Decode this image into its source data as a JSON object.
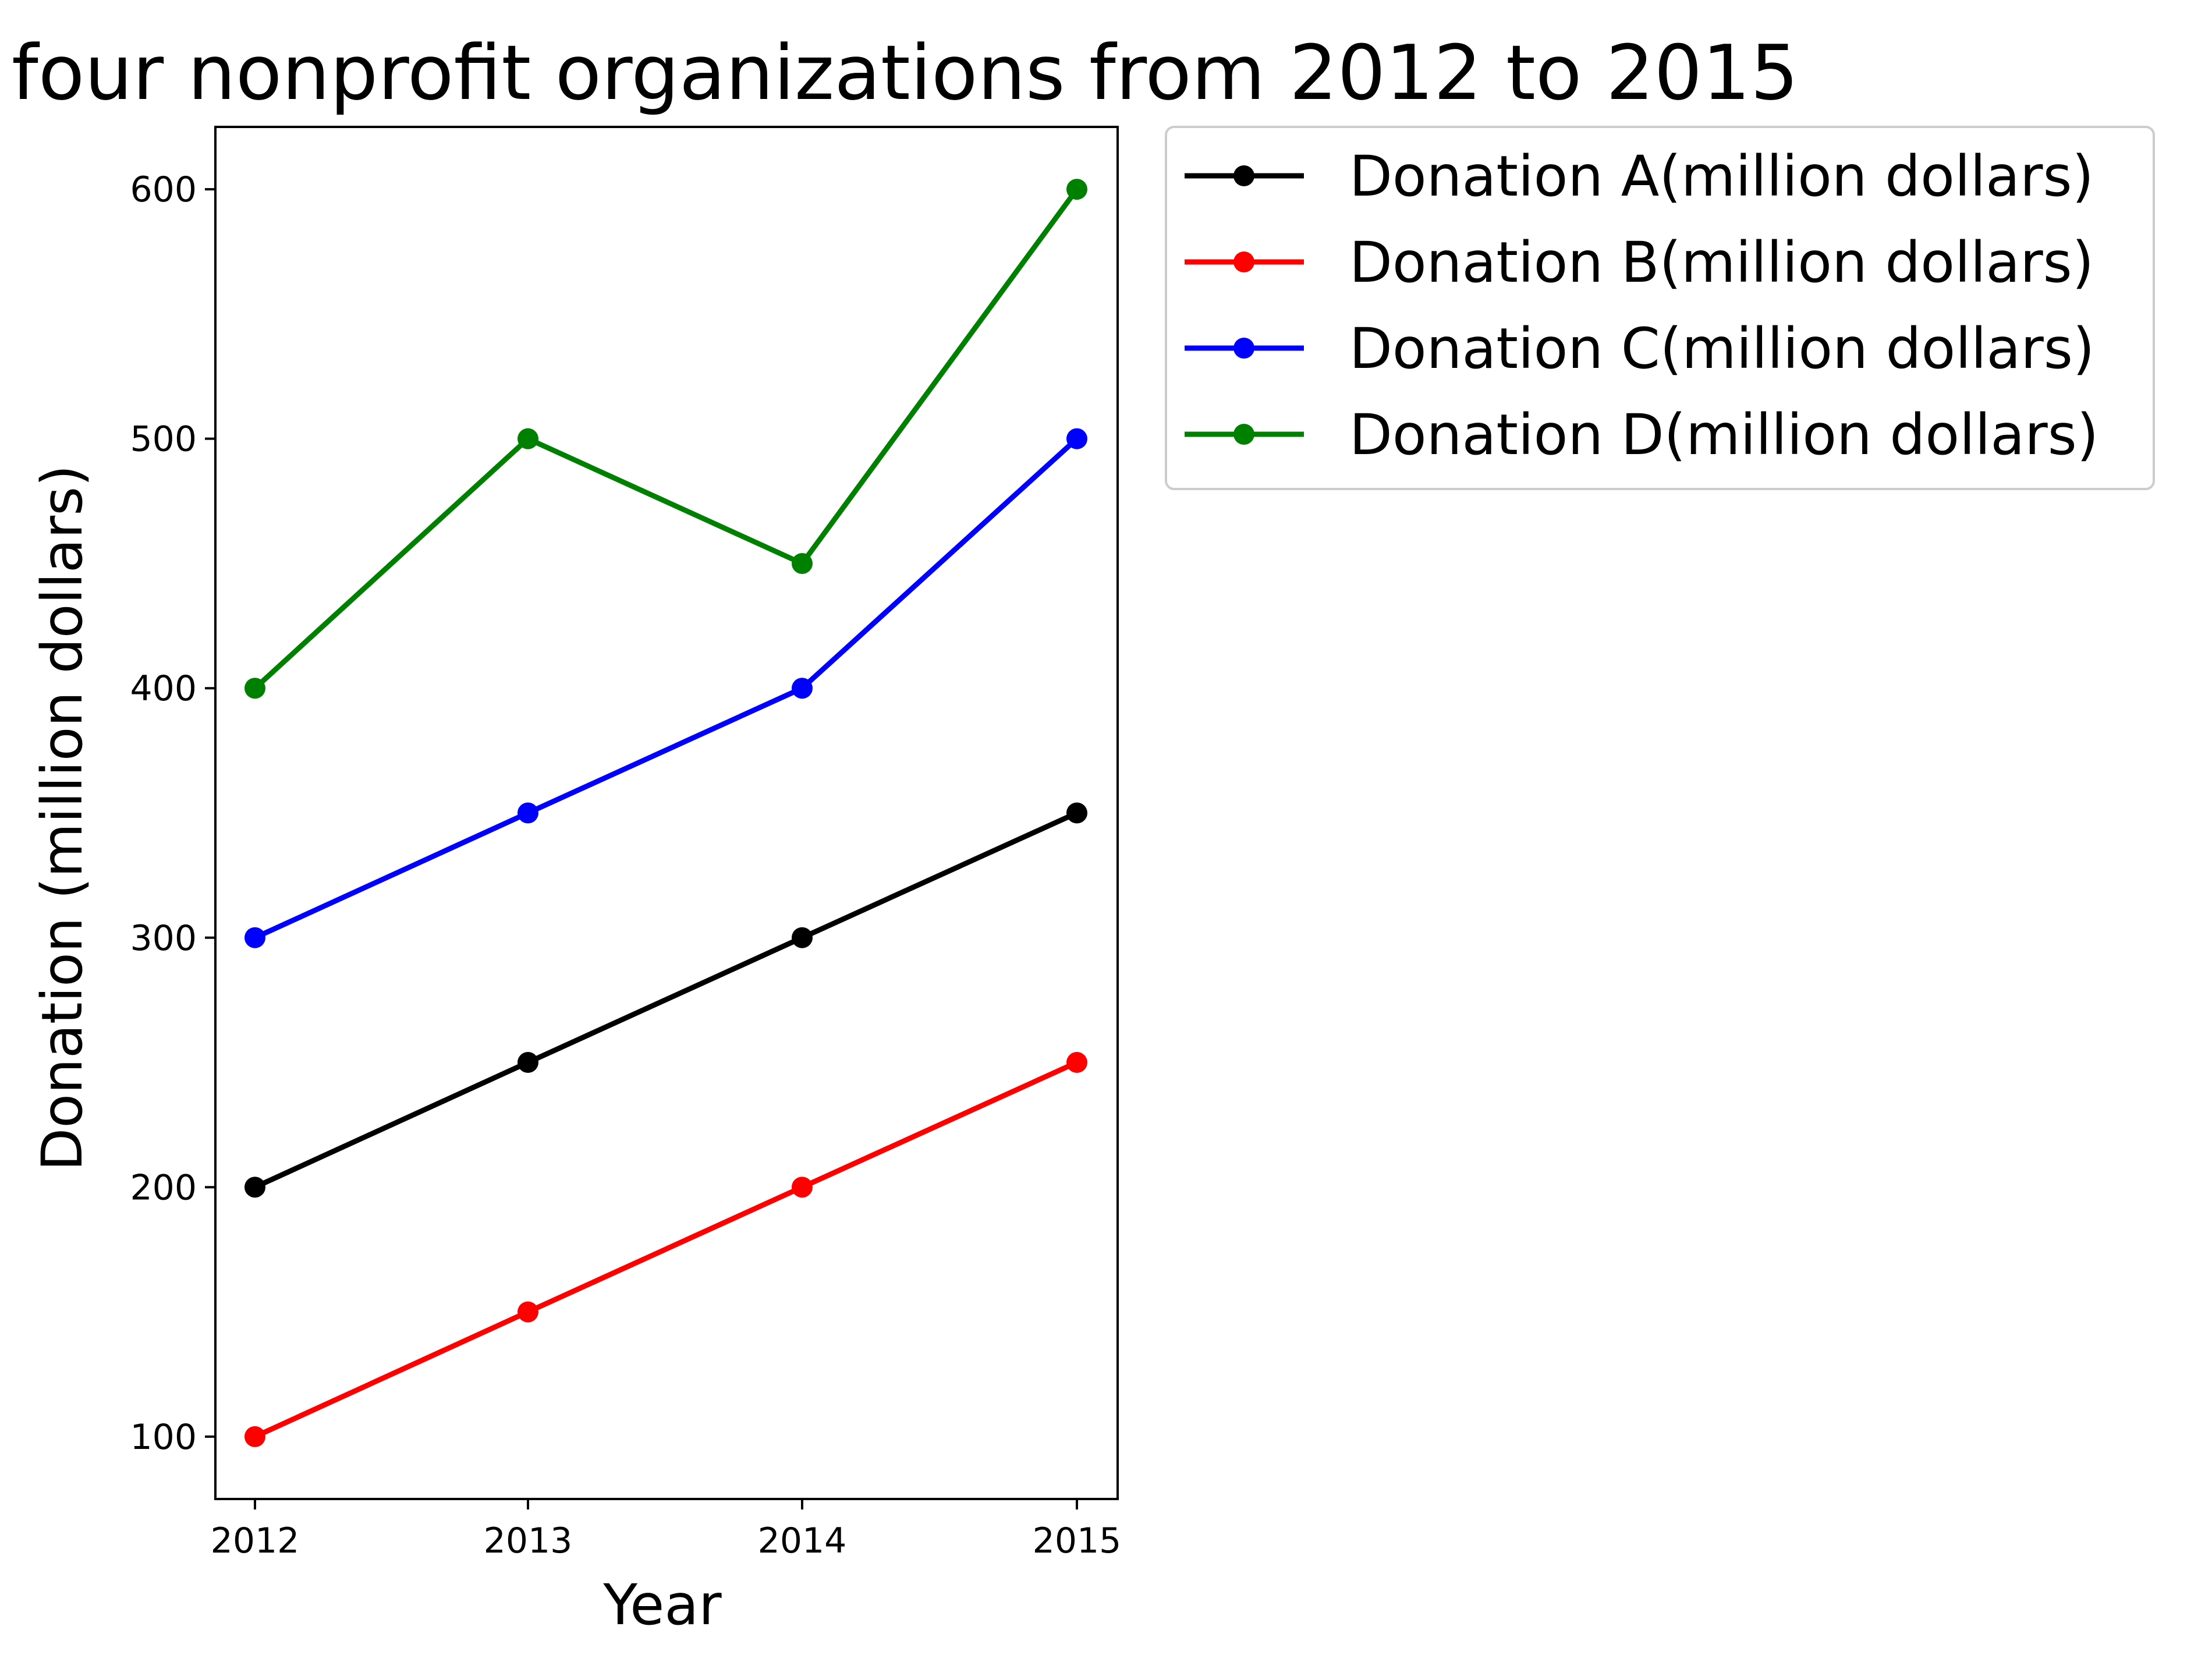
{
  "chart_data": {
    "type": "line",
    "title": "four nonprofit organizations from 2012 to 2015",
    "xlabel": "Year",
    "ylabel": "Donation (million dollars)",
    "x": [
      "2012",
      "2013",
      "2014",
      "2015"
    ],
    "yticks": [
      "100",
      "200",
      "300",
      "400",
      "500",
      "600"
    ],
    "ylim": [
      75,
      625
    ],
    "grid": false,
    "legend_position": "outside-right-top",
    "series": [
      {
        "name": "Donation A(million dollars)",
        "color": "#000000",
        "values": [
          200,
          250,
          300,
          350
        ]
      },
      {
        "name": "Donation B(million dollars)",
        "color": "#ff0000",
        "values": [
          100,
          150,
          200,
          250
        ]
      },
      {
        "name": "Donation C(million dollars)",
        "color": "#0000ff",
        "values": [
          300,
          350,
          400,
          500
        ]
      },
      {
        "name": "Donation D(million dollars)",
        "color": "#008000",
        "values": [
          400,
          500,
          450,
          600
        ]
      }
    ]
  }
}
